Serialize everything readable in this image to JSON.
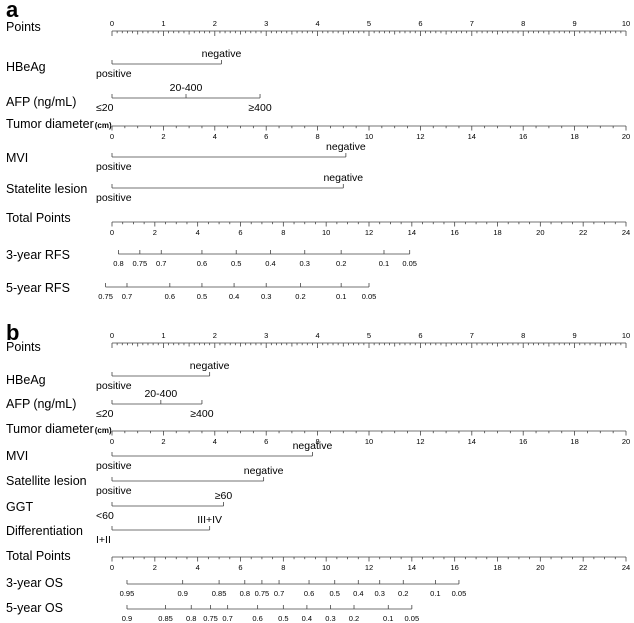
{
  "chart_data": [
    {
      "type": "nomogram",
      "panel": "a",
      "rows": [
        {
          "kind": "scale",
          "label": "Points",
          "min": 0,
          "max": 10,
          "major": 1,
          "minor": 10,
          "labels": [
            "0",
            "1",
            "2",
            "3",
            "4",
            "5",
            "6",
            "7",
            "8",
            "9",
            "10"
          ],
          "labelPos": "above"
        },
        {
          "kind": "cat",
          "label": "HBeAg",
          "start": 0,
          "end": 2.13,
          "ticks": [],
          "levels": [
            {
              "text": "positive",
              "at": 0,
              "pos": "below"
            },
            {
              "text": "negative",
              "at": 2.13,
              "pos": "above"
            }
          ]
        },
        {
          "kind": "cat",
          "label": "AFP",
          "labelUnit": "(ng/mL)",
          "start": 0,
          "end": 2.88,
          "ticks": [
            1.44
          ],
          "levels": [
            {
              "text": "≤20",
              "at": 0,
              "pos": "below"
            },
            {
              "text": "20-400",
              "at": 1.44,
              "pos": "above"
            },
            {
              "text": "≥400",
              "at": 2.88,
              "pos": "below"
            }
          ]
        },
        {
          "kind": "scale",
          "label": "Tumor diameter",
          "labelUnit": "(cm)",
          "min": 0,
          "max": 20,
          "major": 2,
          "minor": 1,
          "pointsPerUnit": 0.5,
          "labels": [
            "0",
            "2",
            "4",
            "6",
            "8",
            "10",
            "12",
            "14",
            "16",
            "18",
            "20"
          ],
          "labelPos": "below"
        },
        {
          "kind": "cat",
          "label": "MVI",
          "start": 0,
          "end": 4.55,
          "ticks": [],
          "levels": [
            {
              "text": "positive",
              "at": 0,
              "pos": "below"
            },
            {
              "text": "negative",
              "at": 4.55,
              "pos": "above"
            }
          ]
        },
        {
          "kind": "cat",
          "label": "Statelite lesion",
          "start": 0,
          "end": 4.5,
          "ticks": [],
          "levels": [
            {
              "text": "positive",
              "at": 0,
              "pos": "below"
            },
            {
              "text": "negative",
              "at": 4.5,
              "pos": "above"
            }
          ]
        },
        {
          "kind": "scale",
          "label": "Total Points",
          "min": 0,
          "max": 24,
          "major": 2,
          "minor": 1,
          "pointsPerUnit": 0.4167,
          "labels": [
            "0",
            "2",
            "4",
            "6",
            "8",
            "10",
            "12",
            "14",
            "16",
            "18",
            "20",
            "22",
            "24"
          ],
          "labelPos": "below"
        },
        {
          "kind": "prob",
          "label": "3-year RFS",
          "ticks": [
            {
              "v": "0.8",
              "t": 0.3
            },
            {
              "v": "0.75",
              "t": 1.3
            },
            {
              "v": "0.7",
              "t": 2.3
            },
            {
              "v": "0.6",
              "t": 4.2
            },
            {
              "v": "0.5",
              "t": 5.8
            },
            {
              "v": "0.4",
              "t": 7.4
            },
            {
              "v": "0.3",
              "t": 9.0
            },
            {
              "v": "0.2",
              "t": 10.7
            },
            {
              "v": "0.1",
              "t": 12.7
            },
            {
              "v": "0.05",
              "t": 13.9
            }
          ]
        },
        {
          "kind": "prob",
          "label": "5-year RFS",
          "ticks": [
            {
              "v": "0.75",
              "t": -0.3
            },
            {
              "v": "0.7",
              "t": 0.7
            },
            {
              "v": "0.6",
              "t": 2.7
            },
            {
              "v": "0.5",
              "t": 4.2
            },
            {
              "v": "0.4",
              "t": 5.7
            },
            {
              "v": "0.3",
              "t": 7.2
            },
            {
              "v": "0.2",
              "t": 8.8
            },
            {
              "v": "0.1",
              "t": 10.7
            },
            {
              "v": "0.05",
              "t": 12.0
            }
          ]
        }
      ]
    },
    {
      "type": "nomogram",
      "panel": "b",
      "rows": [
        {
          "kind": "scale",
          "label": "Points",
          "min": 0,
          "max": 10,
          "major": 1,
          "minor": 10,
          "labels": [
            "0",
            "1",
            "2",
            "3",
            "4",
            "5",
            "6",
            "7",
            "8",
            "9",
            "10"
          ],
          "labelPos": "above"
        },
        {
          "kind": "cat",
          "label": "HBeAg",
          "start": 0,
          "end": 1.9,
          "ticks": [],
          "levels": [
            {
              "text": "positive",
              "at": 0,
              "pos": "below"
            },
            {
              "text": "negative",
              "at": 1.9,
              "pos": "above"
            }
          ]
        },
        {
          "kind": "cat",
          "label": "AFP",
          "labelUnit": "(ng/mL)",
          "start": 0,
          "end": 1.75,
          "ticks": [
            0.95
          ],
          "levels": [
            {
              "text": "≤20",
              "at": 0,
              "pos": "below"
            },
            {
              "text": "20-400",
              "at": 0.95,
              "pos": "above"
            },
            {
              "text": "≥400",
              "at": 1.75,
              "pos": "below"
            }
          ]
        },
        {
          "kind": "scale",
          "label": "Tumor diameter",
          "labelUnit": "(cm)",
          "min": 0,
          "max": 20,
          "major": 2,
          "minor": 1,
          "pointsPerUnit": 0.5,
          "labels": [
            "0",
            "2",
            "4",
            "6",
            "8",
            "10",
            "12",
            "14",
            "16",
            "18",
            "20"
          ],
          "labelPos": "below"
        },
        {
          "kind": "cat",
          "label": "MVI",
          "start": 0,
          "end": 3.9,
          "ticks": [],
          "levels": [
            {
              "text": "positive",
              "at": 0,
              "pos": "below"
            },
            {
              "text": "negative",
              "at": 3.9,
              "pos": "above"
            }
          ]
        },
        {
          "kind": "cat",
          "label": "Satellite lesion",
          "start": 0,
          "end": 2.95,
          "ticks": [],
          "levels": [
            {
              "text": "positive",
              "at": 0,
              "pos": "below"
            },
            {
              "text": "negative",
              "at": 2.95,
              "pos": "above"
            }
          ]
        },
        {
          "kind": "cat",
          "label": "GGT",
          "start": 0,
          "end": 2.17,
          "ticks": [],
          "levels": [
            {
              "text": "<60",
              "at": 0,
              "pos": "below"
            },
            {
              "text": "≥60",
              "at": 2.17,
              "pos": "above"
            }
          ]
        },
        {
          "kind": "cat",
          "label": "Differentiation",
          "start": 0,
          "end": 1.9,
          "ticks": [],
          "levels": [
            {
              "text": "I+II",
              "at": 0,
              "pos": "below"
            },
            {
              "text": "III+IV",
              "at": 1.9,
              "pos": "above"
            }
          ]
        },
        {
          "kind": "scale",
          "label": "Total Points",
          "min": 0,
          "max": 24,
          "major": 2,
          "minor": 1,
          "pointsPerUnit": 0.4167,
          "labels": [
            "0",
            "2",
            "4",
            "6",
            "8",
            "10",
            "12",
            "14",
            "16",
            "18",
            "20",
            "22",
            "24"
          ],
          "labelPos": "below"
        },
        {
          "kind": "prob",
          "label": "3-year OS",
          "ticks": [
            {
              "v": "0.95",
              "t": 0.7
            },
            {
              "v": "0.9",
              "t": 3.3
            },
            {
              "v": "0.85",
              "t": 5.0
            },
            {
              "v": "0.8",
              "t": 6.2
            },
            {
              "v": "0.75",
              "t": 7.0
            },
            {
              "v": "0.7",
              "t": 7.8
            },
            {
              "v": "0.6",
              "t": 9.2
            },
            {
              "v": "0.5",
              "t": 10.4
            },
            {
              "v": "0.4",
              "t": 11.5
            },
            {
              "v": "0.3",
              "t": 12.5
            },
            {
              "v": "0.2",
              "t": 13.6
            },
            {
              "v": "0.1",
              "t": 15.1
            },
            {
              "v": "0.05",
              "t": 16.2
            }
          ]
        },
        {
          "kind": "prob",
          "label": "5-year OS",
          "ticks": [
            {
              "v": "0.9",
              "t": 0.7
            },
            {
              "v": "0.85",
              "t": 2.5
            },
            {
              "v": "0.8",
              "t": 3.7
            },
            {
              "v": "0.75",
              "t": 4.6
            },
            {
              "v": "0.7",
              "t": 5.4
            },
            {
              "v": "0.6",
              "t": 6.8
            },
            {
              "v": "0.5",
              "t": 8.0
            },
            {
              "v": "0.4",
              "t": 9.1
            },
            {
              "v": "0.3",
              "t": 10.2
            },
            {
              "v": "0.2",
              "t": 11.3
            },
            {
              "v": "0.1",
              "t": 12.9
            },
            {
              "v": "0.05",
              "t": 14.0
            }
          ]
        }
      ]
    }
  ]
}
